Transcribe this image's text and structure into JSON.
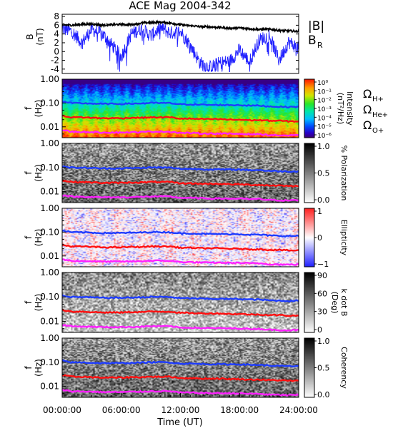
{
  "figure": {
    "title": "ACE Mag 2004-342",
    "xlabel": "Time (UT)",
    "xticks": [
      "00:00:00",
      "06:00:00",
      "12:00:00",
      "18:00:00",
      "24:00:00"
    ]
  },
  "colors": {
    "B_total": "#000000",
    "B_R": "#2020ff",
    "H_plus": "#1e3cff",
    "He_plus": "#ff1010",
    "O_plus": "#ff20ff"
  },
  "chart_data": [
    {
      "type": "line",
      "panel": "B",
      "ylabel": "B",
      "yunit": "(nT)",
      "ylim": [
        -5,
        8.5
      ],
      "yticks": [
        8,
        6,
        4,
        2,
        0,
        -2,
        -4
      ],
      "xlim": [
        0,
        24
      ],
      "legend": [
        "|B|",
        "B_R"
      ],
      "series": [
        {
          "name": "|B|",
          "x": [
            0,
            1,
            2,
            3,
            4,
            5,
            6,
            7,
            8,
            9,
            10,
            11,
            12,
            13,
            14,
            15,
            16,
            17,
            18,
            19,
            20,
            21,
            22,
            23,
            24
          ],
          "values": [
            6.1,
            6.0,
            6.2,
            6.3,
            6.0,
            6.1,
            6.2,
            6.1,
            6.5,
            6.6,
            6.7,
            6.5,
            6.1,
            5.9,
            5.7,
            5.6,
            5.5,
            5.3,
            5.4,
            5.2,
            5.0,
            5.1,
            4.8,
            4.7,
            4.6
          ]
        },
        {
          "name": "B_R",
          "x": [
            0,
            1,
            2,
            3,
            4,
            5,
            6,
            7,
            8,
            9,
            10,
            11,
            12,
            13,
            14,
            15,
            16,
            17,
            18,
            19,
            20,
            21,
            22,
            23,
            24
          ],
          "values": [
            5.2,
            4.6,
            2.0,
            5.0,
            4.2,
            1.6,
            -1.2,
            4.0,
            5.2,
            3.6,
            5.4,
            4.2,
            4.6,
            1.4,
            -2.6,
            -3.6,
            -2.6,
            -2.2,
            0.4,
            -2.4,
            2.6,
            3.8,
            -2.0,
            2.2,
            0.6
          ]
        }
      ]
    },
    {
      "type": "heatmap",
      "panel": "Intensity",
      "ylabel": "f",
      "yunit": "(Hz)",
      "ylim": [
        0.0035,
        1.0
      ],
      "yscale": "log",
      "yticks": [
        "1.00",
        "0.10",
        "0.01"
      ],
      "colorbar": {
        "label": "Intensity",
        "unit": "(nT²/Hz)",
        "ticks": [
          "10⁰",
          "10⁻¹",
          "10⁻²",
          "10⁻³",
          "10⁻⁴",
          "10⁻⁵",
          "10⁻⁶"
        ],
        "range": [
          1e-06,
          1
        ]
      },
      "legend": [
        "ΩH+",
        "ΩHe+",
        "ΩO+"
      ]
    },
    {
      "type": "heatmap",
      "panel": "Polarization",
      "ylabel": "f",
      "yunit": "(Hz)",
      "ylim": [
        0.0035,
        1.0
      ],
      "yscale": "log",
      "yticks": [
        "1.00",
        "0.10",
        "0.01"
      ],
      "colorbar": {
        "label": "% Polarization",
        "ticks": [
          "1.0",
          "0.5",
          "0.0"
        ],
        "range": [
          0,
          1
        ]
      }
    },
    {
      "type": "heatmap",
      "panel": "Ellipticity",
      "ylabel": "f",
      "yunit": "(Hz)",
      "ylim": [
        0.0035,
        1.0
      ],
      "yscale": "log",
      "yticks": [
        "1.00",
        "0.10",
        "0.01"
      ],
      "colorbar": {
        "label": "Ellipticity",
        "ticks": [
          "1",
          "0",
          "−1"
        ],
        "range": [
          -1,
          1
        ]
      }
    },
    {
      "type": "heatmap",
      "panel": "Wave normal angle",
      "ylabel": "f",
      "yunit": "(Hz)",
      "ylim": [
        0.0035,
        1.0
      ],
      "yscale": "log",
      "yticks": [
        "1.00",
        "0.10",
        "0.01"
      ],
      "colorbar": {
        "label": "k dot B",
        "unit": "(Deg)",
        "ticks": [
          "90",
          "60",
          "30",
          "0"
        ],
        "range": [
          0,
          90
        ]
      }
    },
    {
      "type": "heatmap",
      "panel": "Coherency",
      "ylabel": "f",
      "yunit": "(Hz)",
      "ylim": [
        0.0035,
        1.0
      ],
      "yscale": "log",
      "yticks": [
        "1.00",
        "0.10",
        "0.01"
      ],
      "colorbar": {
        "label": "Coherency",
        "ticks": [
          "1.0",
          "0.5",
          "0.0"
        ],
        "range": [
          0,
          1
        ]
      }
    }
  ],
  "gyrofrequencies": {
    "x": [
      0,
      1,
      2,
      3,
      4,
      5,
      6,
      7,
      8,
      9,
      10,
      11,
      12,
      13,
      14,
      15,
      16,
      17,
      18,
      19,
      20,
      21,
      22,
      23,
      24
    ],
    "H_plus": [
      0.115,
      0.098,
      0.098,
      0.095,
      0.092,
      0.092,
      0.092,
      0.094,
      0.096,
      0.1,
      0.1,
      0.098,
      0.088,
      0.088,
      0.085,
      0.083,
      0.083,
      0.082,
      0.082,
      0.078,
      0.078,
      0.072,
      0.07,
      0.068,
      0.07
    ],
    "He_plus": [
      0.029,
      0.025,
      0.025,
      0.024,
      0.023,
      0.023,
      0.023,
      0.024,
      0.024,
      0.025,
      0.025,
      0.025,
      0.022,
      0.022,
      0.021,
      0.021,
      0.021,
      0.02,
      0.02,
      0.019,
      0.019,
      0.018,
      0.018,
      0.017,
      0.017
    ],
    "O_plus": [
      0.0072,
      0.0062,
      0.0061,
      0.006,
      0.0058,
      0.0058,
      0.0058,
      0.0059,
      0.006,
      0.0063,
      0.0063,
      0.0062,
      0.0055,
      0.0055,
      0.0053,
      0.0052,
      0.0052,
      0.0051,
      0.0051,
      0.0049,
      0.0049,
      0.0045,
      0.0044,
      0.0043,
      0.0044
    ]
  }
}
